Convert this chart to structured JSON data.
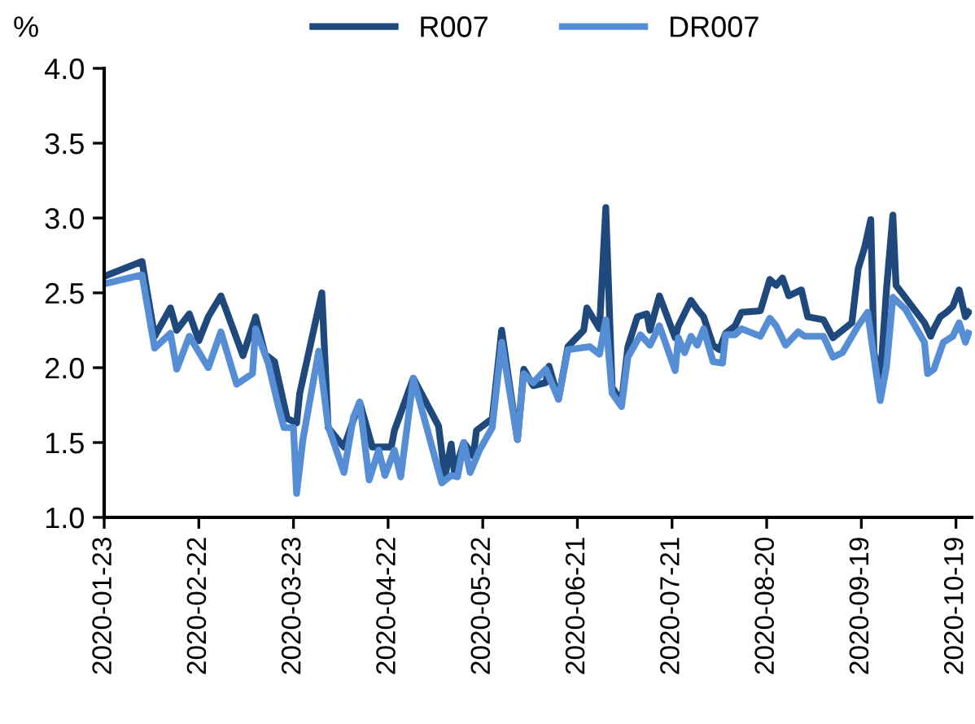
{
  "chart_data": {
    "type": "line",
    "ylabel": "%",
    "legend": "top",
    "xlim": [
      "2020-01-23",
      "2020-10-24"
    ],
    "xticks": [
      "2020-01-23",
      "2020-02-22",
      "2020-03-23",
      "2020-04-22",
      "2020-05-22",
      "2020-06-21",
      "2020-07-21",
      "2020-08-20",
      "2020-09-19",
      "2020-10-19"
    ],
    "ylim": [
      1.0,
      4.0
    ],
    "yticks": [
      {
        "value": 1.0,
        "label": "1.0"
      },
      {
        "value": 1.5,
        "label": "1.5"
      },
      {
        "value": 2.0,
        "label": "2.0"
      },
      {
        "value": 2.5,
        "label": "2.5"
      },
      {
        "value": 3.0,
        "label": "3.0"
      },
      {
        "value": 3.5,
        "label": "3.5"
      },
      {
        "value": 4.0,
        "label": "4.0"
      }
    ],
    "grid": false,
    "marker": "none",
    "line_style": "solid",
    "series": [
      {
        "name": "R007",
        "color": "#1f497d",
        "x": [
          "2020-01-23",
          "2020-02-04",
          "2020-02-08",
          "2020-02-13",
          "2020-02-15",
          "2020-02-19",
          "2020-02-22",
          "2020-02-25",
          "2020-02-29",
          "2020-03-07",
          "2020-03-11",
          "2020-03-14",
          "2020-03-17",
          "2020-03-21",
          "2020-03-24",
          "2020-03-25",
          "2020-04-01",
          "2020-04-03",
          "2020-04-08",
          "2020-04-13",
          "2020-04-17",
          "2020-04-23",
          "2020-04-24",
          "2020-04-30",
          "2020-05-08",
          "2020-05-10",
          "2020-05-12",
          "2020-05-13",
          "2020-05-16",
          "2020-05-19",
          "2020-05-20",
          "2020-05-25",
          "2020-05-28",
          "2020-06-02",
          "2020-06-04",
          "2020-06-07",
          "2020-06-11",
          "2020-06-12",
          "2020-06-15",
          "2020-06-18",
          "2020-06-23",
          "2020-06-24",
          "2020-06-28",
          "2020-06-30",
          "2020-07-02",
          "2020-07-05",
          "2020-07-07",
          "2020-07-10",
          "2020-07-13",
          "2020-07-14",
          "2020-07-17",
          "2020-07-22",
          "2020-07-23",
          "2020-07-27",
          "2020-07-29",
          "2020-07-31",
          "2020-08-03",
          "2020-08-05",
          "2020-08-07",
          "2020-08-10",
          "2020-08-12",
          "2020-08-18",
          "2020-08-21",
          "2020-08-23",
          "2020-08-25",
          "2020-08-27",
          "2020-08-31",
          "2020-09-02",
          "2020-09-07",
          "2020-09-10",
          "2020-09-16",
          "2020-09-18",
          "2020-09-20",
          "2020-09-22",
          "2020-09-23",
          "2020-09-25",
          "2020-09-27",
          "2020-09-29",
          "2020-09-30",
          "2020-10-09",
          "2020-10-11",
          "2020-10-12",
          "2020-10-14",
          "2020-10-16",
          "2020-10-18",
          "2020-10-20",
          "2020-10-22",
          "2020-10-23"
        ],
        "values": [
          2.61,
          2.71,
          2.21,
          2.4,
          2.25,
          2.36,
          2.18,
          2.34,
          2.48,
          2.08,
          2.34,
          2.09,
          2.04,
          1.66,
          1.63,
          1.83,
          2.5,
          1.6,
          1.47,
          1.77,
          1.47,
          1.47,
          1.58,
          1.93,
          1.61,
          1.27,
          1.49,
          1.3,
          1.5,
          1.41,
          1.58,
          1.66,
          2.25,
          1.52,
          1.99,
          1.88,
          1.9,
          2.01,
          1.79,
          2.14,
          2.25,
          2.4,
          2.26,
          3.07,
          1.87,
          1.77,
          2.14,
          2.34,
          2.36,
          2.25,
          2.48,
          2.2,
          2.28,
          2.45,
          2.39,
          2.34,
          2.15,
          2.12,
          2.23,
          2.28,
          2.37,
          2.38,
          2.59,
          2.55,
          2.6,
          2.48,
          2.52,
          2.34,
          2.32,
          2.2,
          2.3,
          2.66,
          2.8,
          2.99,
          2.1,
          1.92,
          2.53,
          3.02,
          2.55,
          2.3,
          2.21,
          2.26,
          2.34,
          2.37,
          2.41,
          2.52,
          2.34,
          2.37
        ]
      },
      {
        "name": "DR007",
        "color": "#558ed5",
        "x": [
          "2020-01-23",
          "2020-02-04",
          "2020-02-08",
          "2020-02-13",
          "2020-02-15",
          "2020-02-19",
          "2020-02-25",
          "2020-02-29",
          "2020-03-05",
          "2020-03-10",
          "2020-03-11",
          "2020-03-15",
          "2020-03-18",
          "2020-03-20",
          "2020-03-23",
          "2020-03-24",
          "2020-03-26",
          "2020-03-31",
          "2020-04-03",
          "2020-04-08",
          "2020-04-11",
          "2020-04-13",
          "2020-04-16",
          "2020-04-19",
          "2020-04-21",
          "2020-04-24",
          "2020-04-26",
          "2020-04-30",
          "2020-05-09",
          "2020-05-12",
          "2020-05-14",
          "2020-05-16",
          "2020-05-18",
          "2020-05-21",
          "2020-05-25",
          "2020-05-28",
          "2020-06-02",
          "2020-06-04",
          "2020-06-07",
          "2020-06-11",
          "2020-06-15",
          "2020-06-18",
          "2020-06-25",
          "2020-06-28",
          "2020-06-30",
          "2020-07-02",
          "2020-07-05",
          "2020-07-07",
          "2020-07-11",
          "2020-07-14",
          "2020-07-17",
          "2020-07-22",
          "2020-07-23",
          "2020-07-25",
          "2020-07-27",
          "2020-07-29",
          "2020-07-31",
          "2020-08-03",
          "2020-08-06",
          "2020-08-07",
          "2020-08-10",
          "2020-08-12",
          "2020-08-18",
          "2020-08-21",
          "2020-08-23",
          "2020-08-26",
          "2020-08-30",
          "2020-09-01",
          "2020-09-07",
          "2020-09-10",
          "2020-09-13",
          "2020-09-18",
          "2020-09-21",
          "2020-09-23",
          "2020-09-25",
          "2020-09-27",
          "2020-09-29",
          "2020-10-03",
          "2020-10-09",
          "2020-10-10",
          "2020-10-12",
          "2020-10-15",
          "2020-10-18",
          "2020-10-20",
          "2020-10-22",
          "2020-10-23"
        ],
        "values": [
          2.56,
          2.62,
          2.13,
          2.23,
          1.99,
          2.21,
          2.0,
          2.24,
          1.89,
          1.96,
          2.26,
          2.03,
          1.76,
          1.6,
          1.6,
          1.16,
          1.52,
          2.11,
          1.61,
          1.3,
          1.67,
          1.77,
          1.25,
          1.45,
          1.28,
          1.45,
          1.27,
          1.93,
          1.23,
          1.28,
          1.27,
          1.5,
          1.3,
          1.45,
          1.6,
          2.17,
          1.52,
          1.96,
          1.9,
          1.99,
          1.79,
          2.12,
          2.14,
          2.09,
          2.32,
          1.83,
          1.74,
          2.07,
          2.22,
          2.15,
          2.28,
          1.98,
          2.2,
          2.1,
          2.21,
          2.15,
          2.26,
          2.04,
          2.03,
          2.22,
          2.22,
          2.26,
          2.21,
          2.33,
          2.28,
          2.15,
          2.24,
          2.21,
          2.21,
          2.07,
          2.1,
          2.28,
          2.37,
          2.07,
          1.78,
          2.01,
          2.47,
          2.39,
          2.17,
          1.96,
          1.99,
          2.17,
          2.21,
          2.3,
          2.17,
          2.23
        ]
      }
    ]
  }
}
